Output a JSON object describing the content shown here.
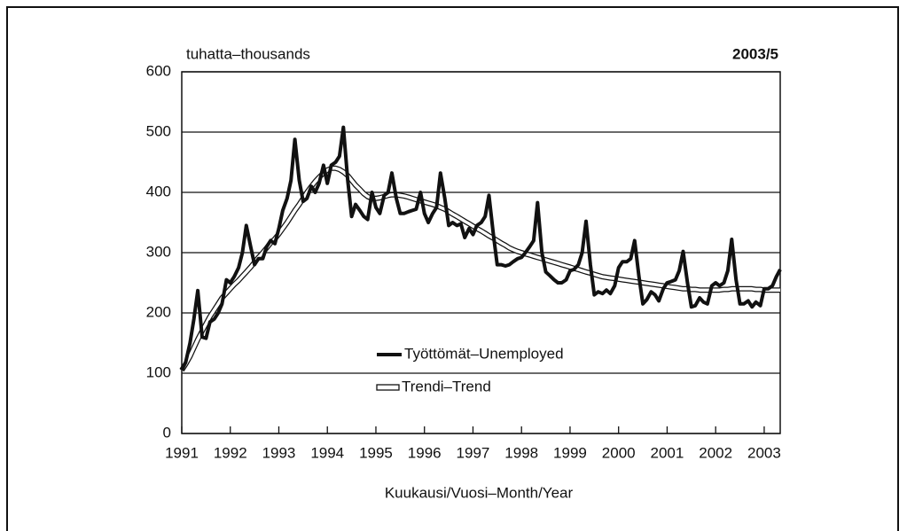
{
  "chart_data": {
    "type": "line",
    "y_label": "tuhatta–thousands",
    "period": "2003/5",
    "x_label": "Kuukausi/Vuosi–Month/Year",
    "xlim": [
      1991,
      2003.33
    ],
    "ylim": [
      0,
      600
    ],
    "xticks": [
      1991,
      1992,
      1993,
      1994,
      1995,
      1996,
      1997,
      1998,
      1999,
      2000,
      2001,
      2002,
      2003
    ],
    "yticks": [
      0,
      100,
      200,
      300,
      400,
      500,
      600
    ],
    "grid": true,
    "legend": "lower center",
    "x": [
      1991,
      1991.08,
      1991.17,
      1991.25,
      1991.33,
      1991.42,
      1991.5,
      1991.58,
      1991.67,
      1991.75,
      1991.83,
      1991.92,
      1992,
      1992.08,
      1992.17,
      1992.25,
      1992.33,
      1992.42,
      1992.5,
      1992.58,
      1992.67,
      1992.75,
      1992.83,
      1992.92,
      1993,
      1993.08,
      1993.17,
      1993.25,
      1993.33,
      1993.42,
      1993.5,
      1993.58,
      1993.67,
      1993.75,
      1993.83,
      1993.92,
      1994,
      1994.08,
      1994.17,
      1994.25,
      1994.33,
      1994.42,
      1994.5,
      1994.58,
      1994.67,
      1994.75,
      1994.83,
      1994.92,
      1995,
      1995.08,
      1995.17,
      1995.25,
      1995.33,
      1995.42,
      1995.5,
      1995.58,
      1995.67,
      1995.75,
      1995.83,
      1995.92,
      1996,
      1996.08,
      1996.17,
      1996.25,
      1996.33,
      1996.42,
      1996.5,
      1996.58,
      1996.67,
      1996.75,
      1996.83,
      1996.92,
      1997,
      1997.08,
      1997.17,
      1997.25,
      1997.33,
      1997.42,
      1997.5,
      1997.58,
      1997.67,
      1997.75,
      1997.83,
      1997.92,
      1998,
      1998.08,
      1998.17,
      1998.25,
      1998.33,
      1998.42,
      1998.5,
      1998.58,
      1998.67,
      1998.75,
      1998.83,
      1998.92,
      1999,
      1999.08,
      1999.17,
      1999.25,
      1999.33,
      1999.42,
      1999.5,
      1999.58,
      1999.67,
      1999.75,
      1999.83,
      1999.92,
      2000,
      2000.08,
      2000.17,
      2000.25,
      2000.33,
      2000.42,
      2000.5,
      2000.58,
      2000.67,
      2000.75,
      2000.83,
      2000.92,
      2001,
      2001.08,
      2001.17,
      2001.25,
      2001.33,
      2001.42,
      2001.5,
      2001.58,
      2001.67,
      2001.75,
      2001.83,
      2001.92,
      2002,
      2002.08,
      2002.17,
      2002.25,
      2002.33,
      2002.42,
      2002.5,
      2002.58,
      2002.67,
      2002.75,
      2002.83,
      2002.92,
      2003,
      2003.08,
      2003.17,
      2003.25,
      2003.33
    ],
    "series": [
      {
        "name": "Työttömät–Unemployed",
        "color": "#111111",
        "values": [
          105,
          118,
          150,
          190,
          237,
          160,
          158,
          185,
          190,
          200,
          215,
          255,
          250,
          260,
          275,
          300,
          345,
          310,
          280,
          290,
          290,
          310,
          320,
          315,
          340,
          370,
          390,
          420,
          488,
          420,
          385,
          390,
          410,
          400,
          415,
          445,
          415,
          445,
          450,
          460,
          508,
          420,
          360,
          380,
          370,
          360,
          355,
          400,
          375,
          365,
          395,
          400,
          432,
          390,
          365,
          365,
          368,
          370,
          372,
          400,
          365,
          350,
          365,
          375,
          432,
          390,
          345,
          350,
          345,
          348,
          325,
          340,
          330,
          345,
          350,
          360,
          395,
          330,
          280,
          280,
          278,
          280,
          285,
          290,
          292,
          300,
          310,
          320,
          383,
          300,
          268,
          262,
          255,
          250,
          250,
          255,
          270,
          272,
          280,
          300,
          352,
          280,
          230,
          235,
          232,
          238,
          232,
          245,
          275,
          285,
          285,
          290,
          320,
          260,
          215,
          222,
          235,
          230,
          220,
          240,
          250,
          252,
          255,
          270,
          302,
          250,
          210,
          212,
          225,
          218,
          215,
          245,
          250,
          245,
          250,
          270,
          322,
          255,
          215,
          215,
          220,
          210,
          218,
          212,
          240,
          240,
          245,
          260,
          272
        ]
      },
      {
        "name": "Trendi–Trend",
        "color": "#111111",
        "values": [
          105,
          115,
          128,
          142,
          156,
          170,
          182,
          194,
          205,
          215,
          225,
          233,
          240,
          247,
          254,
          261,
          268,
          276,
          284,
          292,
          300,
          308,
          316,
          323,
          331,
          340,
          350,
          360,
          370,
          380,
          390,
          400,
          410,
          418,
          425,
          432,
          437,
          440,
          440,
          438,
          434,
          428,
          420,
          412,
          405,
          398,
          393,
          390,
          390,
          391,
          393,
          395,
          396,
          396,
          395,
          394,
          392,
          390,
          388,
          386,
          384,
          382,
          380,
          378,
          375,
          372,
          368,
          364,
          360,
          356,
          352,
          348,
          344,
          340,
          336,
          332,
          328,
          324,
          320,
          316,
          312,
          308,
          305,
          302,
          300,
          298,
          296,
          294,
          292,
          290,
          288,
          286,
          284,
          282,
          280,
          278,
          276,
          274,
          272,
          270,
          268,
          266,
          264,
          262,
          260,
          259,
          258,
          257,
          256,
          255,
          254,
          253,
          252,
          251,
          250,
          249,
          248,
          247,
          246,
          245,
          244,
          243,
          242,
          241,
          240,
          240,
          239,
          239,
          238,
          238,
          238,
          238,
          238,
          238,
          239,
          239,
          240,
          240,
          240,
          240,
          240,
          240,
          239,
          239,
          238,
          238,
          238,
          238,
          238
        ]
      }
    ]
  }
}
